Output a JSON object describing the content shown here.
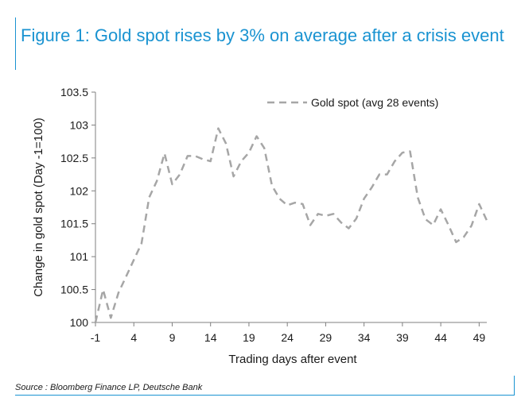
{
  "title": "Figure 1: Gold spot rises by 3% on average after a crisis event",
  "source": "Source : Bloomberg Finance LP, Deutsche Bank",
  "colors": {
    "accent": "#1a93d1",
    "series": "#a6a6a6",
    "text": "#1a1a1a"
  },
  "chart_data": {
    "type": "line",
    "xlabel": "Trading days after event",
    "ylabel": "Change in gold spot (Day -1=100)",
    "xlim": [
      -1,
      50
    ],
    "ylim": [
      100,
      103.5
    ],
    "x_ticks": [
      -1,
      4,
      9,
      14,
      19,
      24,
      29,
      34,
      39,
      44,
      49
    ],
    "y_ticks": [
      100,
      100.5,
      101,
      101.5,
      102,
      102.5,
      103,
      103.5
    ],
    "grid": false,
    "legend_position": "top-right",
    "series": [
      {
        "name": "Gold spot (avg 28 events)",
        "style": "dashed",
        "x": [
          -1,
          0,
          1,
          2,
          3,
          4,
          5,
          6,
          7,
          8,
          9,
          10,
          11,
          12,
          13,
          14,
          15,
          16,
          17,
          18,
          19,
          20,
          21,
          22,
          23,
          24,
          25,
          26,
          27,
          28,
          29,
          30,
          31,
          32,
          33,
          34,
          35,
          36,
          37,
          38,
          39,
          40,
          41,
          42,
          43,
          44,
          45,
          46,
          47,
          48,
          49,
          50
        ],
        "y": [
          100.0,
          100.5,
          100.07,
          100.45,
          100.7,
          100.95,
          101.2,
          101.9,
          102.15,
          102.57,
          102.1,
          102.25,
          102.53,
          102.53,
          102.48,
          102.45,
          102.95,
          102.72,
          102.22,
          102.45,
          102.58,
          102.83,
          102.65,
          102.08,
          101.88,
          101.78,
          101.82,
          101.8,
          101.48,
          101.65,
          101.62,
          101.65,
          101.52,
          101.43,
          101.58,
          101.88,
          102.05,
          102.25,
          102.25,
          102.45,
          102.58,
          102.6,
          101.9,
          101.57,
          101.48,
          101.72,
          101.48,
          101.22,
          101.3,
          101.47,
          101.8,
          101.55
        ]
      }
    ]
  }
}
